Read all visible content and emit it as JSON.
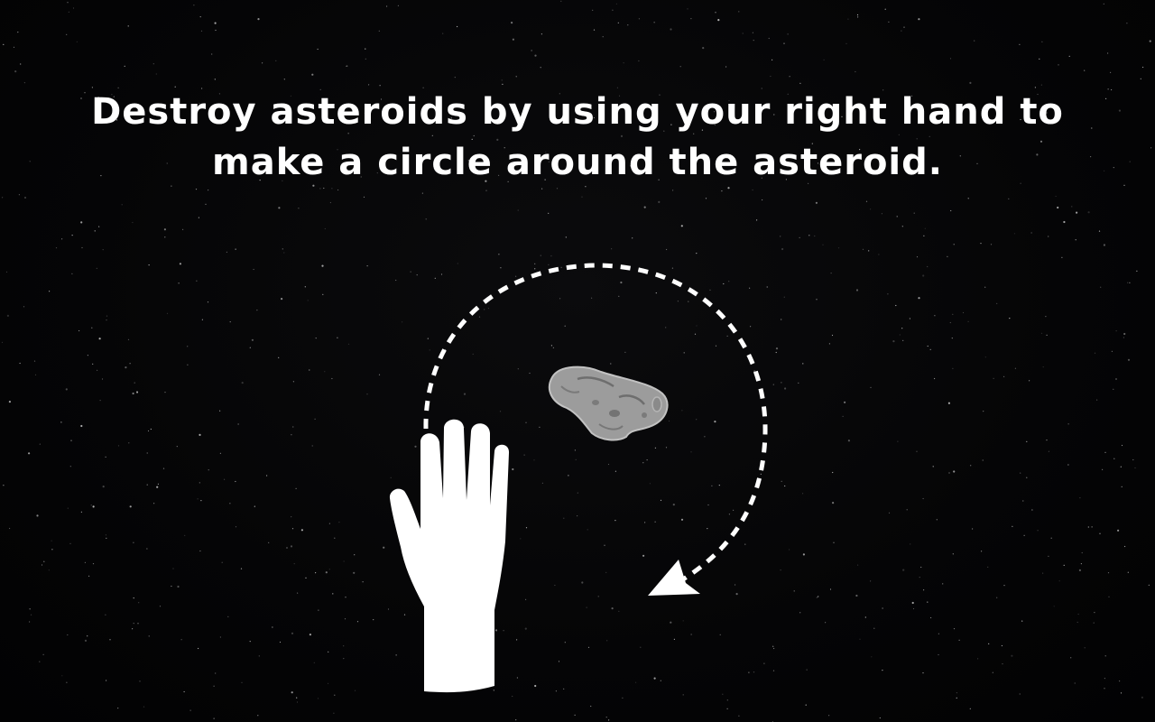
{
  "instructions": {
    "line1": "Destroy asteroids by using your right hand to",
    "line2": "make a circle around the asteroid."
  },
  "icons": {
    "hand": "right-hand-icon",
    "circle_path": "dashed-circle-arrow-icon",
    "asteroid": "asteroid-icon",
    "background": "starfield"
  },
  "colors": {
    "background": "#000000",
    "text": "#ffffff",
    "asteroid": "#9a9a9a",
    "stroke": "#ffffff"
  }
}
